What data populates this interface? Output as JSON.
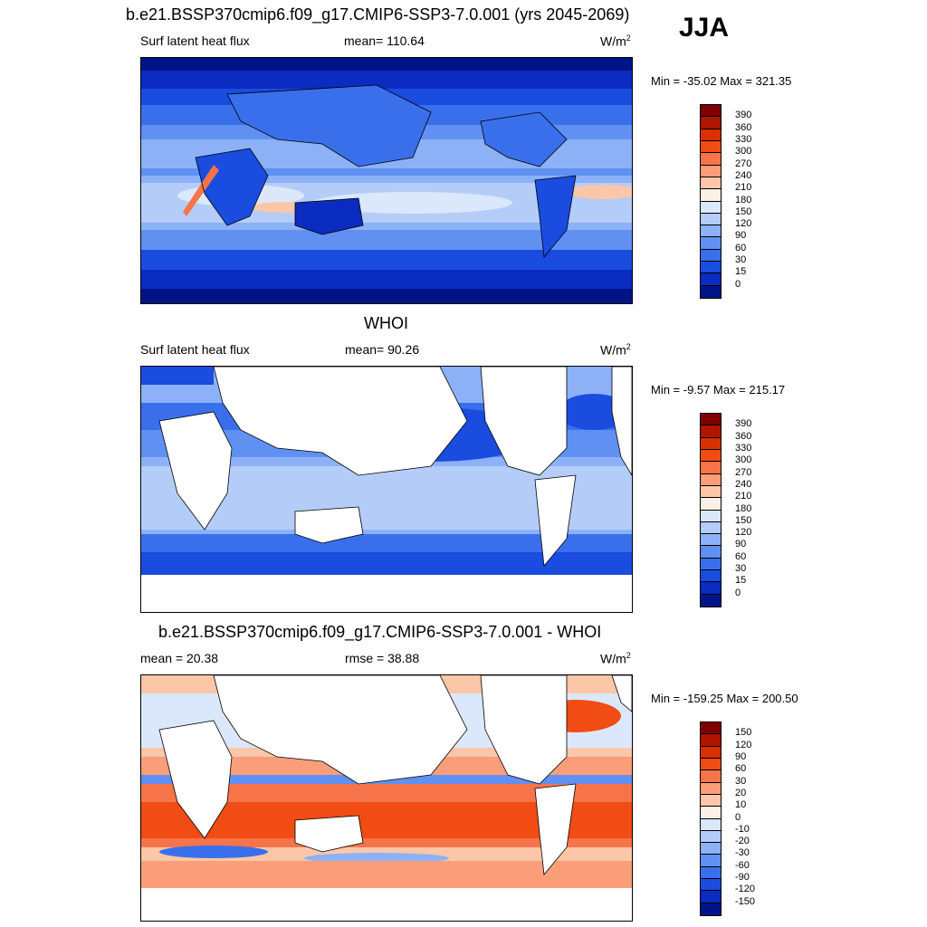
{
  "header": {
    "main_title": "b.e21.BSSP370cmip6.f09_g17.CMIP6-SSP3-7.0.001 (yrs 2045-2069)",
    "season": "JJA"
  },
  "panels": [
    {
      "title": "",
      "left_label": "Surf latent heat flux",
      "center_label": "mean= 110.64",
      "units_base": "W/m",
      "units_sup": "2",
      "minmax": "Min = -35.02 Max = 321.35",
      "ticks": [
        "390",
        "360",
        "330",
        "300",
        "270",
        "240",
        "210",
        "180",
        "150",
        "120",
        "90",
        "60",
        "30",
        "15",
        "0"
      ],
      "colors": [
        "#7f0000",
        "#b01500",
        "#d93000",
        "#f04c14",
        "#f7744a",
        "#fa9e7a",
        "#fcc6a8",
        "#fcf0e4",
        "#dbe8fb",
        "#b4cdf8",
        "#8cb1f6",
        "#6090f2",
        "#3a6fec",
        "#1a4ce0",
        "#0a2cc0",
        "#001487"
      ]
    },
    {
      "title": "WHOI",
      "left_label": "Surf latent heat flux",
      "center_label": "mean=  90.26",
      "units_base": "W/m",
      "units_sup": "2",
      "minmax": "Min =  -9.57 Max = 215.17",
      "ticks": [
        "390",
        "360",
        "330",
        "300",
        "270",
        "240",
        "210",
        "180",
        "150",
        "120",
        "90",
        "60",
        "30",
        "15",
        "0"
      ],
      "colors": [
        "#7f0000",
        "#b01500",
        "#d93000",
        "#f04c14",
        "#f7744a",
        "#fa9e7a",
        "#fcc6a8",
        "#fcf0e4",
        "#dbe8fb",
        "#b4cdf8",
        "#8cb1f6",
        "#6090f2",
        "#3a6fec",
        "#1a4ce0",
        "#0a2cc0",
        "#001487"
      ]
    },
    {
      "title": "b.e21.BSSP370cmip6.f09_g17.CMIP6-SSP3-7.0.001 - WHOI",
      "left_label": "mean =  20.38",
      "center_label": "rmse =  38.88",
      "units_base": "W/m",
      "units_sup": "2",
      "minmax": "Min = -159.25 Max = 200.50",
      "ticks": [
        "150",
        "120",
        "90",
        "60",
        "30",
        "20",
        "10",
        "0",
        "-10",
        "-20",
        "-30",
        "-60",
        "-90",
        "-120",
        "-150"
      ],
      "colors": [
        "#7f0000",
        "#b01500",
        "#d93000",
        "#f04c14",
        "#f7744a",
        "#fa9e7a",
        "#fcc6a8",
        "#fcf0e4",
        "#dbe8fb",
        "#b4cdf8",
        "#8cb1f6",
        "#6090f2",
        "#3a6fec",
        "#1a4ce0",
        "#0a2cc0",
        "#001487"
      ]
    }
  ]
}
